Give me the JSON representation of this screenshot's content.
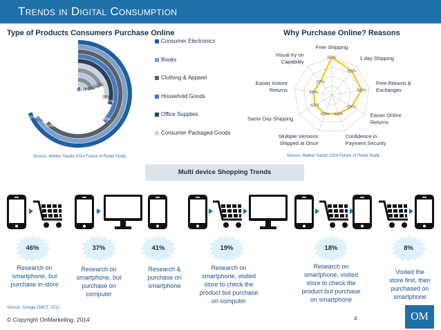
{
  "header": {
    "title": "Trends in Digital Consumption"
  },
  "products": {
    "title": "Type of Products Consumers Purchase Online",
    "source": "Source: Walker Sands 2014 Future of Retail Study",
    "chart_data": {
      "type": "donut",
      "rings": [
        {
          "name": "Consumer Electronics",
          "value": 69,
          "label": "69%",
          "color": "#1f5f9e"
        },
        {
          "name": "Books",
          "value": 67,
          "label": "67%",
          "color": "#7f9fcc"
        },
        {
          "name": "Clothing & Apparel",
          "value": 63,
          "label": "63%",
          "color": "#5a6068"
        },
        {
          "name": "Household Goods",
          "value": 38,
          "label": "38%",
          "color": "#4a79bd"
        },
        {
          "name": "Office Supplies",
          "value": 30,
          "label": "30%",
          "color": "#2a4058"
        },
        {
          "name": "Consumer Packaged Goods",
          "value": 28,
          "label": "28%",
          "color": "#cad3df"
        },
        {
          "name": "",
          "value": 20,
          "label": "20%",
          "color": "#8d949c"
        },
        {
          "name": "",
          "value": 20,
          "label": "20%",
          "color": "#b6c8e2"
        },
        {
          "name": "",
          "value": 20,
          "label": "20%",
          "color": "#8a8f95"
        },
        {
          "name": "",
          "value": 18,
          "label": "18%",
          "color": "#c3cad3"
        },
        {
          "name": "",
          "value": 6,
          "label": "6%",
          "color": "#5f86c4"
        }
      ]
    },
    "legend": [
      {
        "label": "Consumer Electronics",
        "color": "#1f5f9e"
      },
      {
        "label": "Books",
        "color": "#7f9fcc"
      },
      {
        "label": "Clothing & Apparel",
        "color": "#5a6068"
      },
      {
        "label": "Household Goods",
        "color": "#4a79bd"
      },
      {
        "label": "Office Supplies",
        "color": "#2a4058"
      },
      {
        "label": "Consumer Packaged Goods",
        "color": "#cad3df"
      }
    ]
  },
  "reasons": {
    "title": "Why Purchase Online? Reasons",
    "source": "Source: Walker Sands 2014 Future of Retail Study",
    "chart_data": {
      "type": "radar",
      "max": 80,
      "axes": [
        {
          "name": "Free Shipping",
          "value": 80,
          "label": "80%"
        },
        {
          "name": "1 day Shipping",
          "value": 66,
          "label": "66%"
        },
        {
          "name": "Free Returns & Exchanges",
          "value": 64,
          "label": "64%"
        },
        {
          "name": "Easier Online Returns",
          "value": 48,
          "label": "48%"
        },
        {
          "name": "Confidence in Payment Security",
          "value": 42,
          "label": "42%"
        },
        {
          "name": "Multiple Versions Shipped at Once",
          "value": 42,
          "label": "42%"
        },
        {
          "name": "Same Day Shipping",
          "value": 41,
          "label": "41%"
        },
        {
          "name": "Easier Instore Returns",
          "value": 39,
          "label": "39%"
        },
        {
          "name": "Visual try on Capability",
          "value": 37,
          "label": "37%"
        }
      ],
      "label_lines": [
        [
          "Free Shipping"
        ],
        [
          "1 day Shipping"
        ],
        [
          "Free Returns &",
          "Exchanges"
        ],
        [
          "Easier Online",
          "Returns"
        ],
        [
          "Confidence in",
          "Payment Security"
        ],
        [
          "Multiple Versions",
          "Shipped at Once"
        ],
        [
          "Same Day Shipping"
        ],
        [
          "Easier Instore",
          "Returns"
        ],
        [
          "Visual try on",
          "Capability"
        ]
      ],
      "series_color": "#f2c300"
    }
  },
  "multi": {
    "title": "Multi device Shopping Trends",
    "source": "Source: Google ZMOT, 2012",
    "items": [
      {
        "pct": "46%",
        "lines": [
          "Research on",
          "smartphone, but",
          "purchase in-store"
        ]
      },
      {
        "pct": "37%",
        "lines": [
          "Research on",
          "smartphone, but",
          "purchase on",
          "computer"
        ]
      },
      {
        "pct": "41%",
        "lines": [
          "Research &",
          "purchase on",
          "smartphone"
        ]
      },
      {
        "pct": "19%",
        "lines": [
          "Research on",
          "smartphone, visited",
          "store to check the",
          "product but purchase",
          "on computer"
        ]
      },
      {
        "pct": "18%",
        "lines": [
          "Research on",
          "smartphone, visited",
          "store to check the",
          "product but purchase",
          "on smartphone"
        ]
      },
      {
        "pct": "8%",
        "lines": [
          "Visited the",
          "store first, then",
          "purchased on",
          "smartphone"
        ]
      }
    ]
  },
  "footer": {
    "copyright": "© Copyright OnMarketing, 2014",
    "page": "4",
    "logo": "OM"
  }
}
